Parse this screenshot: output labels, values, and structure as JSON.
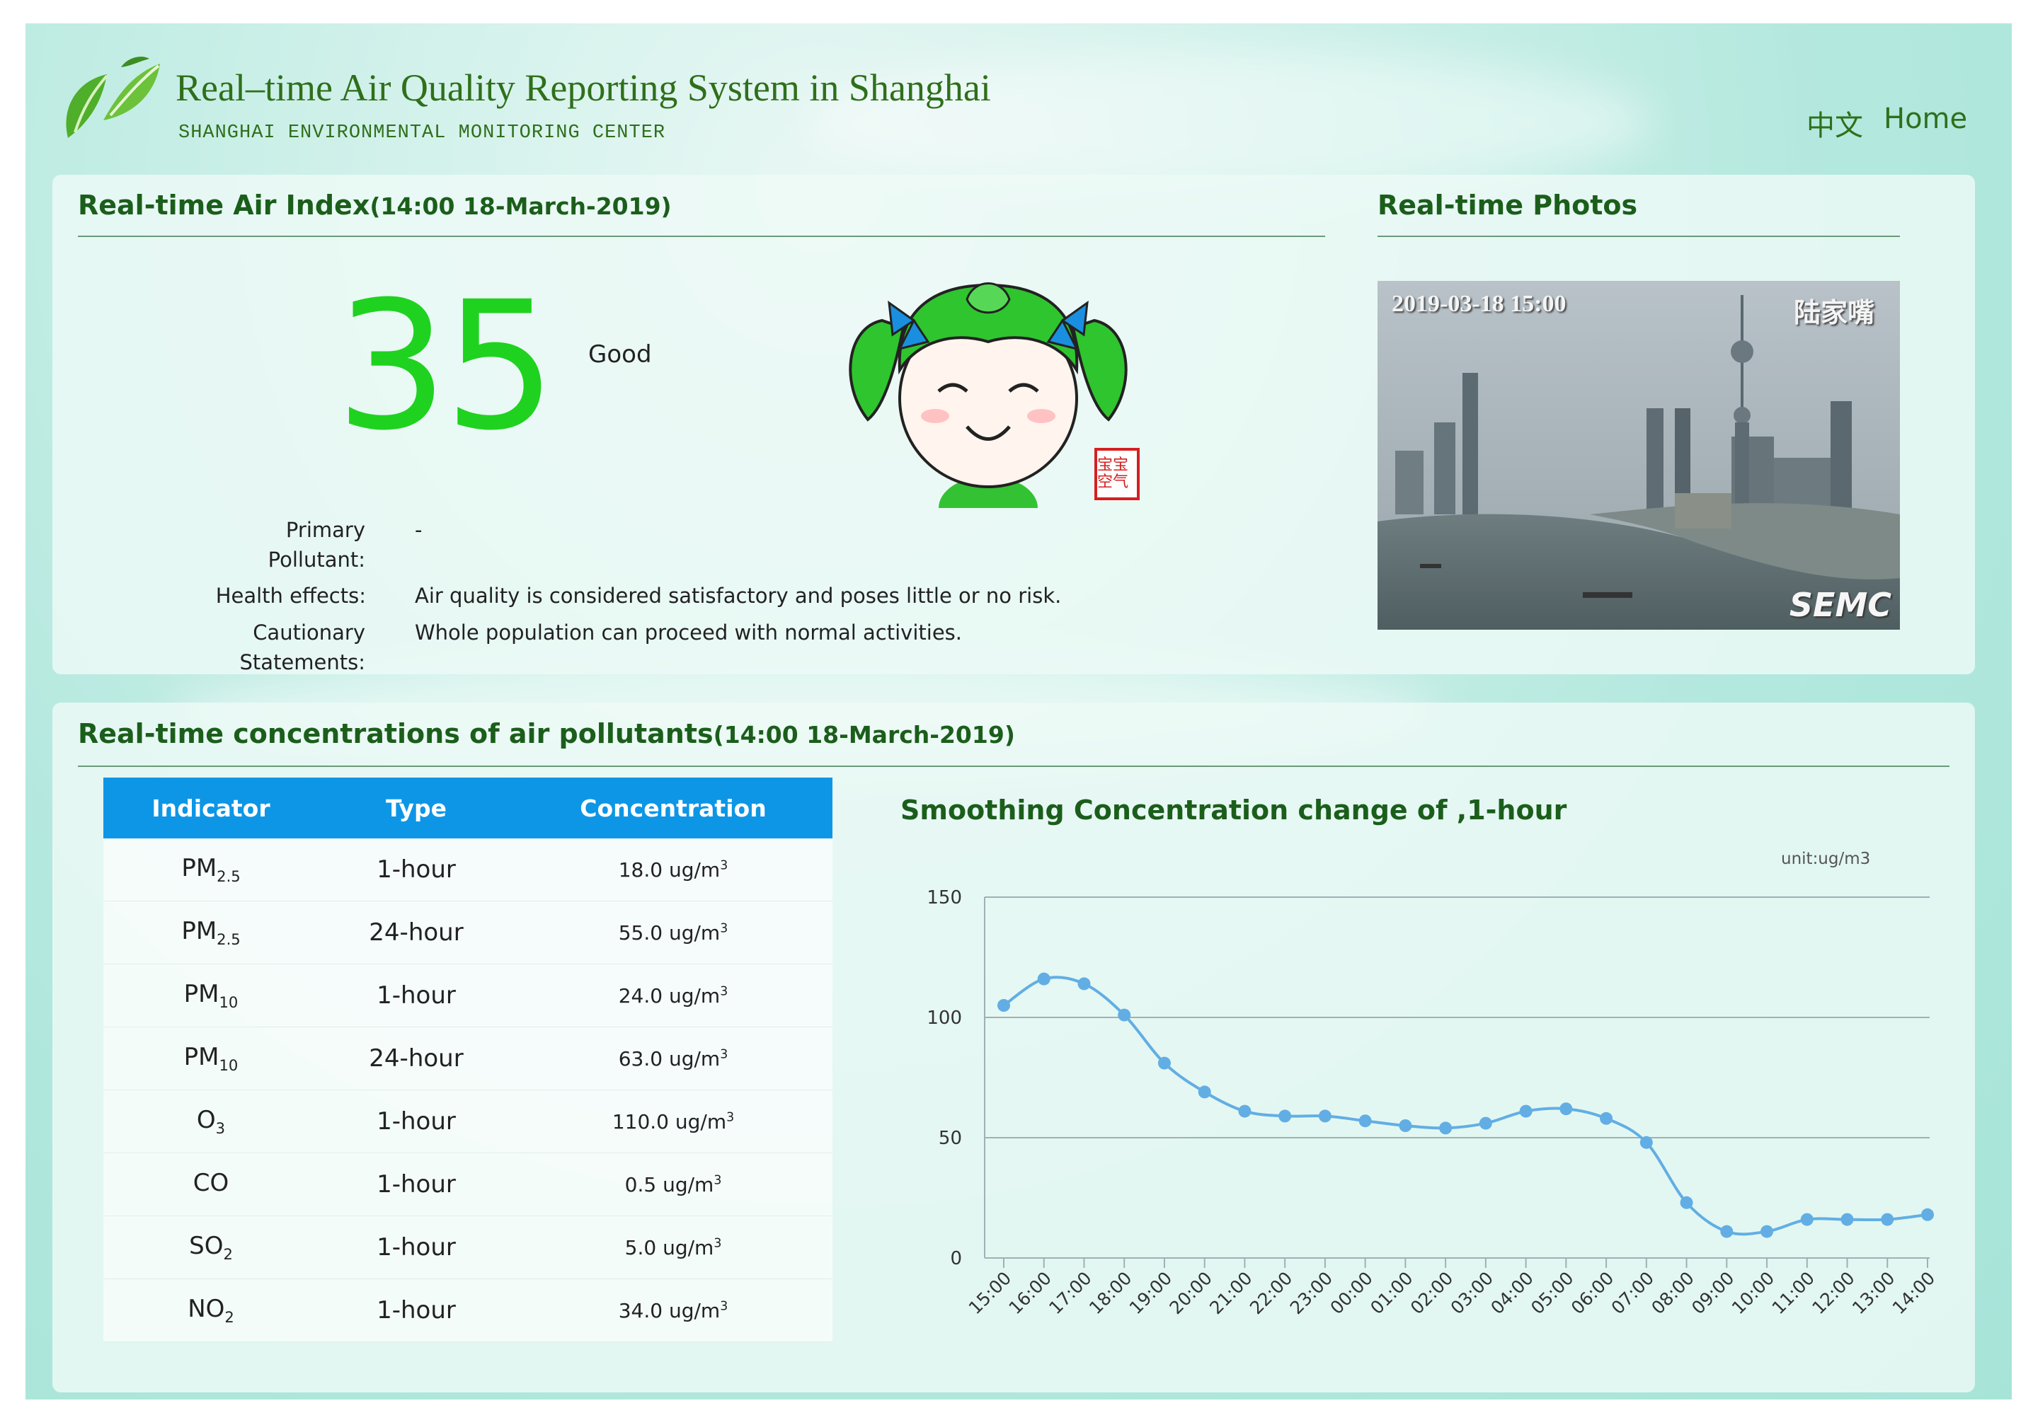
{
  "header": {
    "title": "Real–time Air Quality Reporting System in Shanghai",
    "subtitle": "SHANGHAI ENVIRONMENTAL MONITORING CENTER",
    "nav": {
      "lang": "中文",
      "home": "Home"
    }
  },
  "air_index": {
    "title": "Real-time Air Index",
    "time": "(14:00 18-March-2019)",
    "aqi": "35",
    "level": "Good",
    "primary_pollutant_label": "Primary Pollutant:",
    "primary_pollutant": "-",
    "health_effects_label": "Health effects:",
    "health_effects": "Air quality is considered satisfactory and poses little or no risk.",
    "cautionary_label": "Cautionary Statements:",
    "cautionary": "Whole population can proceed with normal activities.",
    "mascot_seal": "宝宝空气"
  },
  "photos": {
    "title": "Real-time Photos",
    "timestamp": "2019-03-18 15:00",
    "location": "陆家嘴",
    "watermark": "SEMC"
  },
  "pollutants": {
    "title": "Real-time concentrations of air pollutants",
    "time": "(14:00 18-March-2019)",
    "columns": [
      "Indicator",
      "Type",
      "Concentration"
    ],
    "rows": [
      {
        "indicator": "PM",
        "sub": "2.5",
        "type": "1-hour",
        "conc": "18.0 ug/m",
        "sup": "3"
      },
      {
        "indicator": "PM",
        "sub": "2.5",
        "type": "24-hour",
        "conc": "55.0 ug/m",
        "sup": "3"
      },
      {
        "indicator": "PM",
        "sub": "10",
        "type": "1-hour",
        "conc": "24.0 ug/m",
        "sup": "3"
      },
      {
        "indicator": "PM",
        "sub": "10",
        "type": "24-hour",
        "conc": "63.0 ug/m",
        "sup": "3"
      },
      {
        "indicator": "O",
        "sub": "3",
        "type": "1-hour",
        "conc": "110.0 ug/m",
        "sup": "3"
      },
      {
        "indicator": "CO",
        "sub": "",
        "type": "1-hour",
        "conc": "0.5 ug/m",
        "sup": "3"
      },
      {
        "indicator": "SO",
        "sub": "2",
        "type": "1-hour",
        "conc": "5.0 ug/m",
        "sup": "3"
      },
      {
        "indicator": "NO",
        "sub": "2",
        "type": "1-hour",
        "conc": "34.0 ug/m",
        "sup": "3"
      }
    ]
  },
  "chart_data": {
    "type": "line",
    "title": "Smoothing Concentration change of ,1-hour",
    "unit": "unit:ug/m3",
    "categories": [
      "15:00",
      "16:00",
      "17:00",
      "18:00",
      "19:00",
      "20:00",
      "21:00",
      "22:00",
      "23:00",
      "00:00",
      "01:00",
      "02:00",
      "03:00",
      "04:00",
      "05:00",
      "06:00",
      "07:00",
      "08:00",
      "09:00",
      "10:00",
      "11:00",
      "12:00",
      "13:00",
      "14:00"
    ],
    "series": [
      {
        "values": [
          105,
          116,
          114,
          101,
          81,
          69,
          61,
          59,
          59,
          57,
          55,
          54,
          56,
          61,
          62,
          58,
          48,
          23,
          11,
          11,
          16,
          16,
          16,
          18
        ]
      }
    ],
    "yticks": [
      0,
      50,
      100,
      150
    ],
    "ylim": [
      0,
      150
    ],
    "grid": true,
    "color": "#62aee4"
  }
}
